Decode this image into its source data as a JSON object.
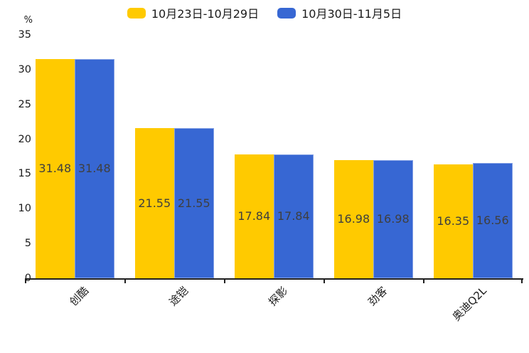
{
  "chart_data": {
    "type": "bar",
    "categories": [
      "创酷",
      "途铠",
      "探影",
      "劲客",
      "奥迪Q2L"
    ],
    "series": [
      {
        "name": "10月23日-10月29日",
        "color": "#FFCA00",
        "values": [
          31.48,
          21.55,
          17.84,
          16.98,
          16.35
        ]
      },
      {
        "name": "10月30日-11月5日",
        "color": "#3767D3",
        "values": [
          31.48,
          21.55,
          17.84,
          16.98,
          16.56
        ]
      }
    ],
    "xlabel": "",
    "ylabel": "%",
    "ylim": [
      0,
      35
    ],
    "yticks": [
      0,
      5,
      10,
      15,
      20,
      25,
      30,
      35
    ],
    "grid": false,
    "legend_position": "top",
    "value_labels": "inside-center",
    "value_label_decimals": 2,
    "label_color": "#3f3f3f",
    "axis_color": "#1f1f1f"
  }
}
